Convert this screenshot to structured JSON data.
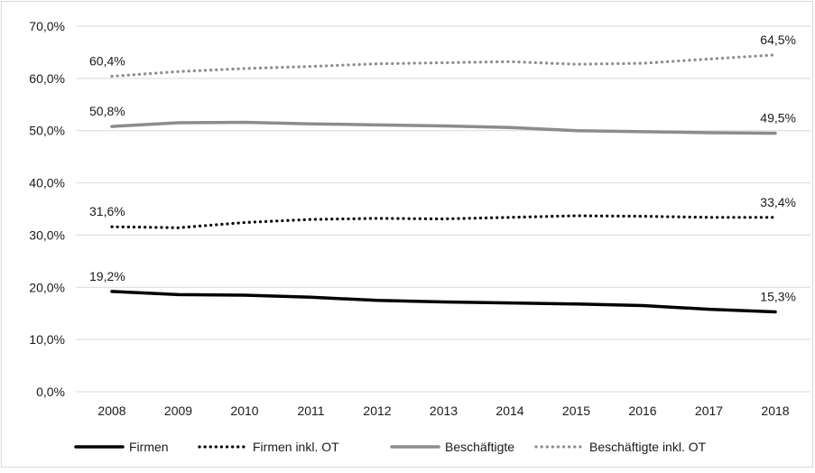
{
  "chart_data": {
    "type": "line",
    "title": "",
    "xlabel": "",
    "ylabel": "",
    "x": [
      "2008",
      "2009",
      "2010",
      "2011",
      "2012",
      "2013",
      "2014",
      "2015",
      "2016",
      "2017",
      "2018"
    ],
    "ylim": [
      0,
      70
    ],
    "yticks": [
      "0,0%",
      "10,0%",
      "20,0%",
      "30,0%",
      "40,0%",
      "50,0%",
      "60,0%",
      "70,0%"
    ],
    "grid": true,
    "legend_position": "bottom",
    "series": [
      {
        "name": "Firmen",
        "style": "solid-thick",
        "color": "#000000",
        "values": [
          19.2,
          18.6,
          18.5,
          18.1,
          17.5,
          17.2,
          17.0,
          16.8,
          16.5,
          15.8,
          15.3
        ],
        "labels": [
          "19,2%",
          "15,3%"
        ]
      },
      {
        "name": "Firmen inkl. OT",
        "style": "dotted",
        "color": "#000000",
        "values": [
          31.6,
          31.4,
          32.4,
          33.0,
          33.2,
          33.1,
          33.4,
          33.7,
          33.6,
          33.4,
          33.4
        ],
        "labels": [
          "31,6%",
          "33,4%"
        ]
      },
      {
        "name": "Beschäftigte",
        "style": "solid-thick",
        "color": "#8c8c8c",
        "values": [
          50.8,
          51.5,
          51.6,
          51.3,
          51.1,
          50.9,
          50.6,
          50.0,
          49.8,
          49.6,
          49.5
        ],
        "labels": [
          "50,8%",
          "49,5%"
        ]
      },
      {
        "name": "Beschäftigte inkl. OT",
        "style": "dotted",
        "color": "#8c8c8c",
        "values": [
          60.4,
          61.3,
          61.9,
          62.3,
          62.8,
          63.0,
          63.2,
          62.7,
          62.9,
          63.7,
          64.5
        ],
        "labels": [
          "60,4%",
          "64,5%"
        ]
      }
    ]
  }
}
